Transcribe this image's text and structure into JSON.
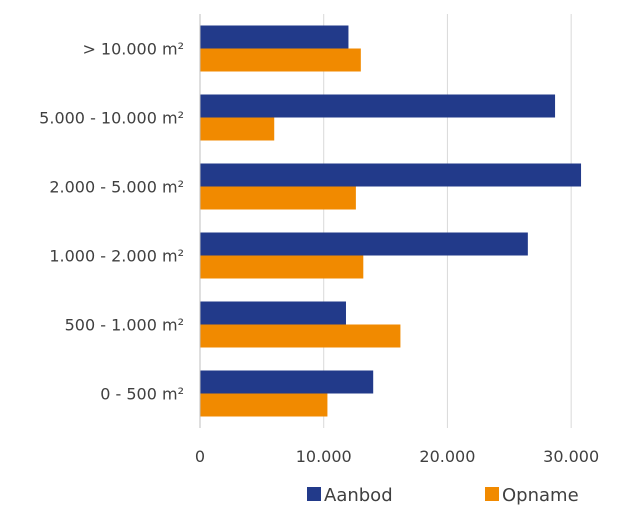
{
  "chart_data": {
    "type": "bar",
    "orientation": "horizontal",
    "categories": [
      "> 10.000 m²",
      "5.000 - 10.000 m²",
      "2.000 - 5.000 m²",
      "1.000 - 2.000 m²",
      "500 - 1.000 m²",
      "0 - 500 m²"
    ],
    "series": [
      {
        "name": "Aanbod",
        "color": "#223a8a",
        "values": [
          12000,
          28700,
          30800,
          26500,
          11800,
          14000
        ]
      },
      {
        "name": "Opname",
        "color": "#f18a00",
        "values": [
          13000,
          6000,
          12600,
          13200,
          16200,
          10300
        ]
      }
    ],
    "xlim": [
      0,
      35000
    ],
    "xticks": [
      0,
      10000,
      20000,
      30000
    ],
    "xtick_labels": [
      "0",
      "10.000",
      "20.000",
      "30.000"
    ],
    "grid": true,
    "legend": "bottom",
    "title": "",
    "xlabel": "",
    "ylabel": ""
  }
}
